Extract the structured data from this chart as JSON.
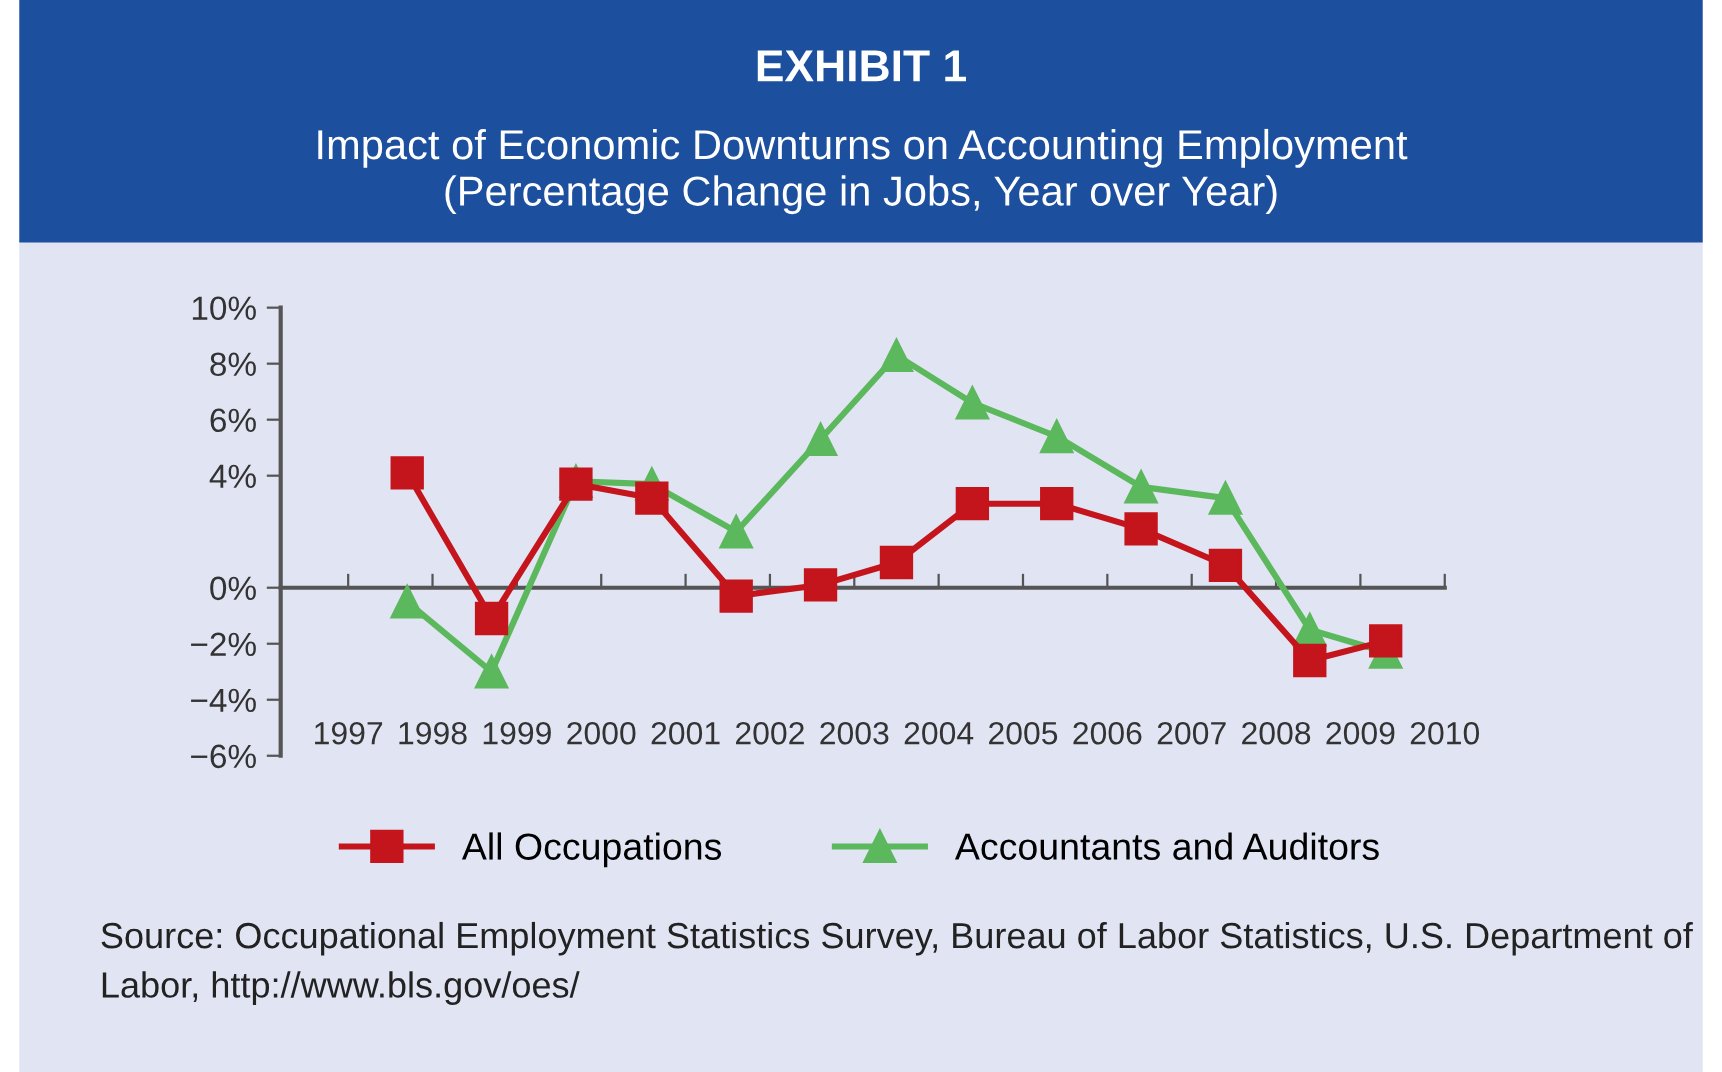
{
  "chart_data": {
    "type": "line",
    "title": "EXHIBIT 1",
    "subtitle": "Impact of Economic Downturns on Accounting Employment\n(Percentage Change in Jobs, Year over Year)",
    "x": [
      1997.7,
      1998.7,
      1999.7,
      2000.6,
      2001.6,
      2002.6,
      2003.5,
      2004.4,
      2005.4,
      2006.4,
      2007.4,
      2008.4,
      2009.3
    ],
    "series": [
      {
        "name": "All Occupations",
        "color": "#c4141c",
        "marker": "square",
        "values": [
          4.1,
          -1.1,
          3.7,
          3.2,
          -0.3,
          0.1,
          0.9,
          3.0,
          3.0,
          2.1,
          0.8,
          -2.6,
          -1.9
        ]
      },
      {
        "name": "Accountants and Auditors",
        "color": "#5cb85c",
        "marker": "triangle",
        "values": [
          -0.5,
          -3.0,
          3.8,
          3.7,
          2.0,
          5.3,
          8.3,
          6.6,
          5.4,
          3.6,
          3.2,
          -1.5,
          -2.3
        ]
      }
    ],
    "xlim": [
      1996.2,
      2010.0
    ],
    "xticks": [
      1997,
      1998,
      1999,
      2000,
      2001,
      2002,
      2003,
      2004,
      2005,
      2006,
      2007,
      2008,
      2009,
      2010
    ],
    "ylim": [
      -6,
      10
    ],
    "yticks": [
      {
        "value": 10,
        "label": "10%"
      },
      {
        "value": 8,
        "label": "8%"
      },
      {
        "value": 6,
        "label": "6%"
      },
      {
        "value": 4,
        "label": "4%"
      },
      {
        "value": 0,
        "label": "0%"
      },
      {
        "value": -2,
        "label": "−2%"
      },
      {
        "value": -4,
        "label": "−4%"
      },
      {
        "value": -6,
        "label": "−6%"
      }
    ],
    "legend": "bottom",
    "annotations": [
      "Source: Occupational Employment Statistics Survey, Bureau of Labor Statistics, U.S. Department of Labor, http://www.bls.gov/oes/"
    ]
  }
}
